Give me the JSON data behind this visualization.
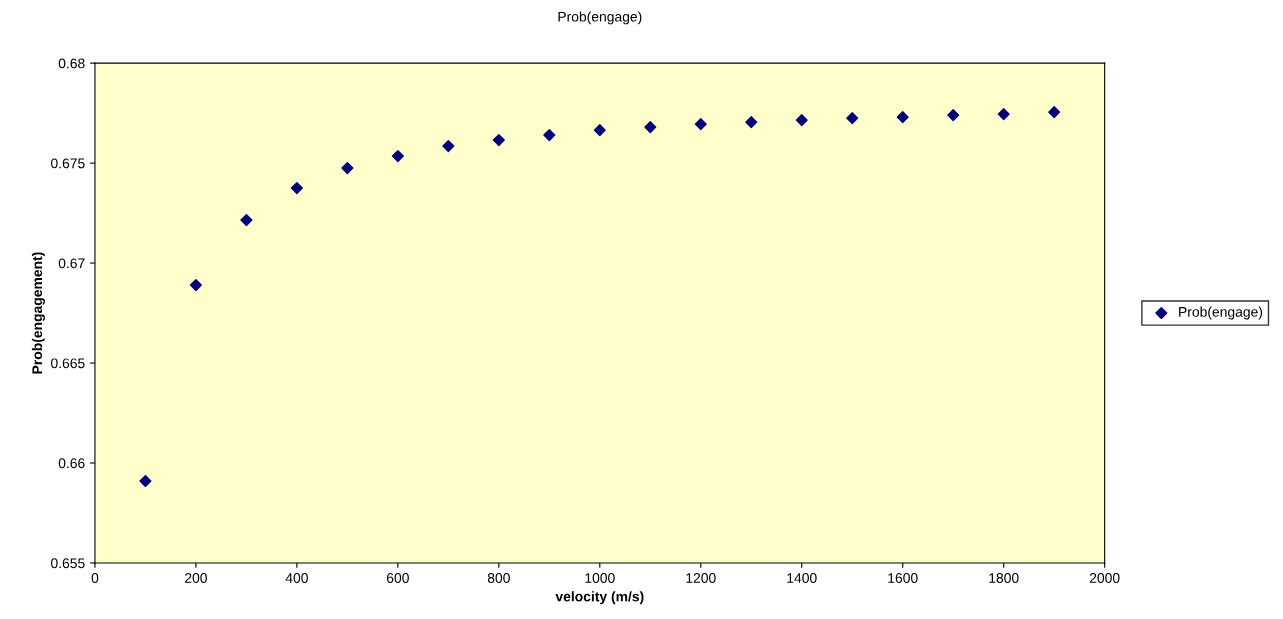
{
  "chart_data": {
    "type": "scatter",
    "title": "Prob(engage)",
    "xlabel": "velocity (m/s)",
    "ylabel": "Prob(engagement)",
    "x": [
      100,
      200,
      300,
      400,
      500,
      600,
      700,
      800,
      900,
      1000,
      1100,
      1200,
      1300,
      1400,
      1500,
      1600,
      1700,
      1800,
      1900
    ],
    "series": [
      {
        "name": "Prob(engage)",
        "color": "#000080",
        "values": [
          0.6591,
          0.6689,
          0.67215,
          0.67375,
          0.67475,
          0.67535,
          0.67585,
          0.67615,
          0.6764,
          0.67665,
          0.6768,
          0.67695,
          0.67705,
          0.67715,
          0.67725,
          0.6773,
          0.6774,
          0.67745,
          0.67755
        ]
      }
    ],
    "xlim": [
      0,
      2000
    ],
    "xticks": [
      0,
      200,
      400,
      600,
      800,
      1000,
      1200,
      1400,
      1600,
      1800,
      2000
    ],
    "ylim": [
      0.655,
      0.68
    ],
    "yticks": [
      0.655,
      0.66,
      0.665,
      0.67,
      0.675,
      0.68
    ],
    "grid": false,
    "legend": "right",
    "marker": "diamond"
  }
}
